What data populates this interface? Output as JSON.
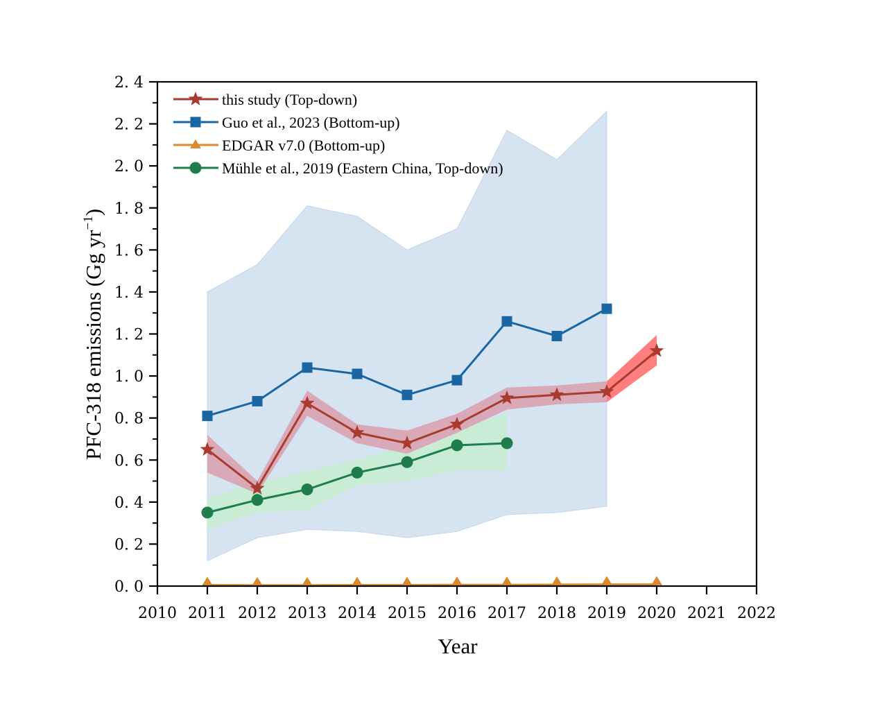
{
  "chart_data": {
    "type": "line",
    "title": "",
    "xlabel": "Year",
    "ylabel": "PFC-318 emissions (Gg yr",
    "ylabel_superscript": "−1",
    "ylabel_suffix": ")",
    "xlim": [
      2010,
      2022
    ],
    "ylim": [
      0.0,
      2.4
    ],
    "xticks": [
      2010,
      2011,
      2012,
      2013,
      2014,
      2015,
      2016,
      2017,
      2018,
      2019,
      2020,
      2021,
      2022
    ],
    "xtick_labels": [
      "2010",
      "2011",
      "2012",
      "2013",
      "2014",
      "2015",
      "2016",
      "2017",
      "2018",
      "2019",
      "2020",
      "2021",
      "2022"
    ],
    "yticks": [
      0.0,
      0.2,
      0.4,
      0.6,
      0.8,
      1.0,
      1.2,
      1.4,
      1.6,
      1.8,
      2.0,
      2.2,
      2.4
    ],
    "ytick_labels": [
      "0. 0",
      "0. 2",
      "0. 4",
      "0. 6",
      "0. 8",
      "1. 0",
      "1. 2",
      "1. 4",
      "1. 6",
      "1. 8",
      "2. 0",
      "2. 2",
      "2. 4"
    ],
    "y_minor_step": 0.1,
    "grid": false,
    "legend_position": "top-left",
    "series": [
      {
        "name": "this study (Top-down)",
        "color": "#a83a2e",
        "marker": "star",
        "x": [
          2011,
          2012,
          2013,
          2014,
          2015,
          2016,
          2017,
          2018,
          2019,
          2020
        ],
        "values": [
          0.65,
          0.465,
          0.87,
          0.73,
          0.68,
          0.77,
          0.895,
          0.91,
          0.925,
          1.12
        ],
        "band": {
          "segments": [
            {
              "color": "#d9a9b8",
              "x": [
                2011,
                2012,
                2013,
                2014,
                2015,
                2016,
                2017,
                2018,
                2019
              ],
              "upper": [
                0.72,
                0.5,
                0.93,
                0.77,
                0.74,
                0.82,
                0.945,
                0.955,
                0.975
              ],
              "lower": [
                0.54,
                0.44,
                0.81,
                0.68,
                0.63,
                0.73,
                0.84,
                0.865,
                0.875
              ]
            },
            {
              "color": "#ff7f7f",
              "x": [
                2019,
                2020
              ],
              "upper": [
                0.975,
                1.195
              ],
              "lower": [
                0.875,
                1.05
              ]
            }
          ]
        }
      },
      {
        "name": "Guo et al., 2023 (Bottom-up)",
        "color": "#1a66a3",
        "marker": "square",
        "x": [
          2011,
          2012,
          2013,
          2014,
          2015,
          2016,
          2017,
          2018,
          2019
        ],
        "values": [
          0.81,
          0.88,
          1.04,
          1.01,
          0.91,
          0.98,
          1.26,
          1.19,
          1.32
        ],
        "band": {
          "segments": [
            {
              "color": "#d6e3f1",
              "x": [
                2011,
                2012,
                2013,
                2014,
                2015,
                2016,
                2017,
                2018,
                2019
              ],
              "upper": [
                1.4,
                1.53,
                1.81,
                1.76,
                1.6,
                1.7,
                2.17,
                2.03,
                2.26
              ],
              "lower": [
                0.12,
                0.23,
                0.27,
                0.26,
                0.23,
                0.26,
                0.34,
                0.35,
                0.38
              ]
            }
          ]
        }
      },
      {
        "name": "EDGAR v7.0 (Bottom-up)",
        "color": "#d98a2f",
        "marker": "triangle",
        "x": [
          2011,
          2012,
          2013,
          2014,
          2015,
          2016,
          2017,
          2018,
          2019,
          2020
        ],
        "values": [
          0.005,
          0.004,
          0.004,
          0.005,
          0.005,
          0.006,
          0.006,
          0.007,
          0.008,
          0.008
        ]
      },
      {
        "name": "Mühle et al., 2019 (Eastern China, Top-down)",
        "color": "#1e7d4a",
        "marker": "circle",
        "x": [
          2011,
          2012,
          2013,
          2014,
          2015,
          2016,
          2017
        ],
        "values": [
          0.35,
          0.41,
          0.46,
          0.54,
          0.59,
          0.67,
          0.68
        ],
        "band": {
          "segments": [
            {
              "color": "#c8ecd4",
              "x": [
                2011,
                2012,
                2013,
                2014,
                2015,
                2016,
                2017
              ],
              "upper": [
                0.42,
                0.49,
                0.55,
                0.6,
                0.67,
                0.75,
                0.82
              ],
              "lower": [
                0.27,
                0.35,
                0.36,
                0.48,
                0.5,
                0.55,
                0.55
              ]
            }
          ]
        }
      }
    ],
    "draw_order": [
      1,
      3,
      0,
      2
    ]
  }
}
